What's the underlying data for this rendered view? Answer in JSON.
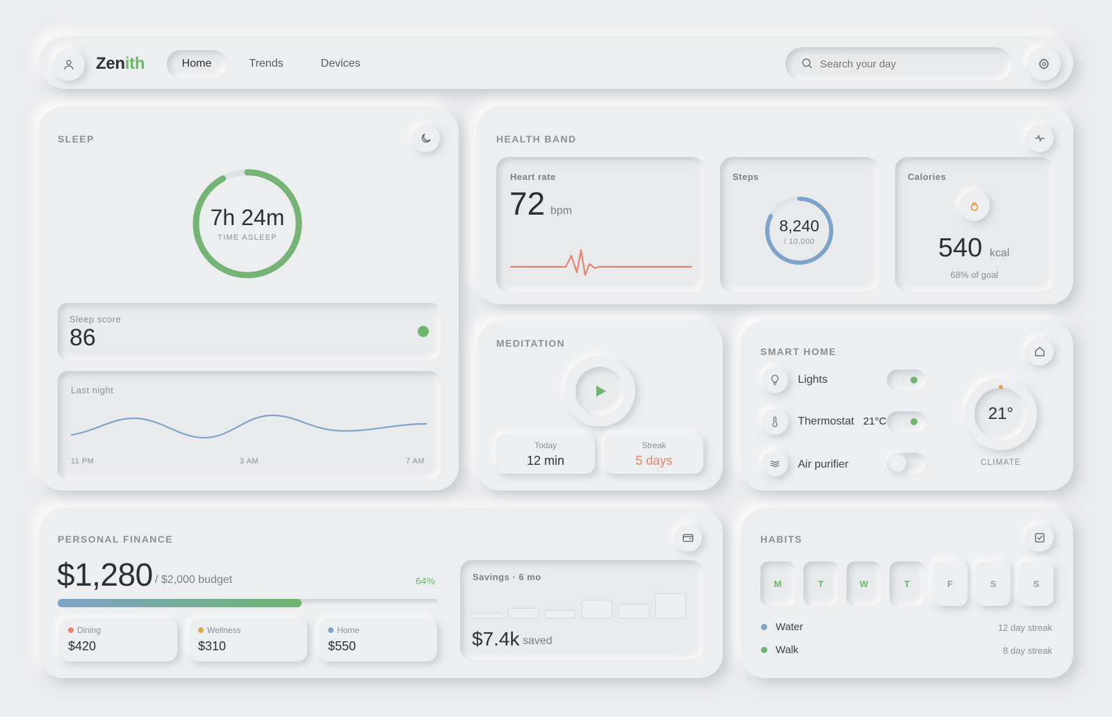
{
  "app": {
    "brand_part1": "Zen",
    "brand_part2": "ith",
    "brand_color": "#6fb56f",
    "nav": [
      "Home",
      "Trends",
      "Devices"
    ],
    "active_nav": "Home",
    "search_placeholder": "Search your day",
    "icons": {
      "avatar": "user-icon",
      "settings": "gear-icon",
      "search": "search-icon"
    }
  },
  "sleep": {
    "title": "SLEEP",
    "time": "7h 24m",
    "time_caption": "TIME ASLEEP",
    "ring_progress": 0.92,
    "score_label": "Sleep score",
    "score": "86",
    "chart_label": "Last night",
    "axis": [
      "11 PM",
      "3 AM",
      "7 AM"
    ]
  },
  "health": {
    "title": "HEALTH BAND",
    "heart_label": "Heart rate",
    "heart_value": "72",
    "heart_unit": "bpm",
    "steps_label": "Steps",
    "steps_value": "8,240",
    "steps_goal": "/ 10,000",
    "steps_progress": 0.824,
    "cal_label": "Calories",
    "cal_value": "540",
    "cal_unit": "kcal",
    "cal_goal": "68% of goal"
  },
  "meditation": {
    "title": "MEDITATION",
    "today_label": "Today",
    "today_value": "12 min",
    "streak_label": "Streak",
    "streak_value": "5 days"
  },
  "smart_home": {
    "title": "SMART HOME",
    "devices": [
      {
        "name": "Lights",
        "value": "",
        "on": true,
        "icon": "bulb-icon"
      },
      {
        "name": "Thermostat",
        "value": "21°C",
        "on": true,
        "icon": "thermometer-icon"
      },
      {
        "name": "Air purifier",
        "value": "",
        "on": false,
        "icon": "wind-icon"
      }
    ],
    "climate_value": "21°",
    "climate_label": "CLIMATE"
  },
  "finance": {
    "title": "PERSONAL FINANCE",
    "spent": "$1,280",
    "budget": "/ $2,000 budget",
    "percent": "64%",
    "progress": 0.64,
    "categories": [
      {
        "name": "Dining",
        "amount": "$420",
        "color": "#e8826a"
      },
      {
        "name": "Wellness",
        "amount": "$310",
        "color": "#e0a64a"
      },
      {
        "name": "Home",
        "amount": "$550",
        "color": "#7ea3c9"
      }
    ],
    "savings_label": "Savings · 6 mo",
    "savings_value": "$7.4k",
    "savings_suffix": "saved",
    "savings_bars": [
      0.18,
      0.35,
      0.28,
      0.62,
      0.48,
      0.85
    ]
  },
  "habits": {
    "title": "HABITS",
    "days": [
      {
        "d": "M",
        "done": true
      },
      {
        "d": "T",
        "done": true
      },
      {
        "d": "W",
        "done": true
      },
      {
        "d": "T",
        "done": true
      },
      {
        "d": "F",
        "done": false
      },
      {
        "d": "S",
        "done": false
      },
      {
        "d": "S",
        "done": false
      }
    ],
    "list": [
      {
        "name": "Water",
        "streak": "12 day streak",
        "color": "#7ea3c9"
      },
      {
        "name": "Walk",
        "streak": "8 day streak",
        "color": "#6fb56f"
      }
    ]
  }
}
